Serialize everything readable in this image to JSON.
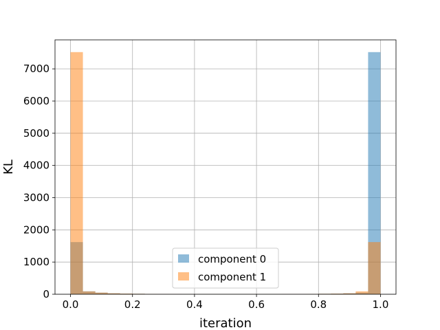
{
  "chart_data": {
    "type": "bar",
    "subtype": "histogram-overlay",
    "xlabel": "iteration",
    "ylabel": "KL",
    "xlim": [
      -0.05,
      1.05
    ],
    "ylim": [
      0,
      7900
    ],
    "x_ticks": [
      0.0,
      0.2,
      0.4,
      0.6,
      0.8,
      1.0
    ],
    "x_tick_labels": [
      "0.0",
      "0.2",
      "0.4",
      "0.6",
      "0.8",
      "1.0"
    ],
    "y_ticks": [
      0,
      1000,
      2000,
      3000,
      4000,
      5000,
      6000,
      7000
    ],
    "y_tick_labels": [
      "0",
      "1000",
      "2000",
      "3000",
      "4000",
      "5000",
      "6000",
      "7000"
    ],
    "grid": true,
    "legend_position": "lower center",
    "bin_edges": [
      0.0,
      0.04,
      0.08,
      0.12,
      0.16,
      0.2,
      0.24,
      0.28,
      0.32,
      0.36,
      0.4,
      0.44,
      0.48,
      0.52,
      0.56,
      0.6,
      0.64,
      0.68,
      0.72,
      0.76,
      0.8,
      0.84,
      0.88,
      0.92,
      0.96,
      1.0
    ],
    "series": [
      {
        "name": "component 0",
        "color": "#1f77b4",
        "alpha": 0.5,
        "values": [
          1620,
          90,
          50,
          30,
          20,
          15,
          10,
          8,
          8,
          6,
          6,
          6,
          6,
          6,
          6,
          6,
          6,
          8,
          8,
          10,
          15,
          20,
          30,
          50,
          7520
        ]
      },
      {
        "name": "component 1",
        "color": "#ff7f0e",
        "alpha": 0.5,
        "values": [
          7520,
          90,
          50,
          30,
          20,
          15,
          10,
          8,
          8,
          6,
          6,
          6,
          6,
          6,
          6,
          6,
          6,
          8,
          8,
          10,
          15,
          20,
          30,
          90,
          1620
        ]
      }
    ]
  }
}
